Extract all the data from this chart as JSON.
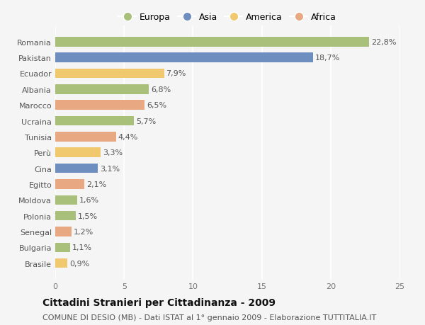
{
  "countries": [
    "Romania",
    "Pakistan",
    "Ecuador",
    "Albania",
    "Marocco",
    "Ucraina",
    "Tunisia",
    "Perù",
    "Cina",
    "Egitto",
    "Moldova",
    "Polonia",
    "Senegal",
    "Bulgaria",
    "Brasile"
  ],
  "values": [
    22.8,
    18.7,
    7.9,
    6.8,
    6.5,
    5.7,
    4.4,
    3.3,
    3.1,
    2.1,
    1.6,
    1.5,
    1.2,
    1.1,
    0.9
  ],
  "labels": [
    "22,8%",
    "18,7%",
    "7,9%",
    "6,8%",
    "6,5%",
    "5,7%",
    "4,4%",
    "3,3%",
    "3,1%",
    "2,1%",
    "1,6%",
    "1,5%",
    "1,2%",
    "1,1%",
    "0,9%"
  ],
  "colors": [
    "#a8c07a",
    "#6d8ebf",
    "#f0c96e",
    "#a8c07a",
    "#e8a882",
    "#a8c07a",
    "#e8a882",
    "#f0c96e",
    "#6d8ebf",
    "#e8a882",
    "#a8c07a",
    "#a8c07a",
    "#e8a882",
    "#a8c07a",
    "#f0c96e"
  ],
  "continent_colors": {
    "Europa": "#a8c07a",
    "Asia": "#6d8ebf",
    "America": "#f0c96e",
    "Africa": "#e8a882"
  },
  "title": "Cittadini Stranieri per Cittadinanza - 2009",
  "subtitle": "COMUNE DI DESIO (MB) - Dati ISTAT al 1° gennaio 2009 - Elaborazione TUTTITALIA.IT",
  "xlim": [
    0,
    25
  ],
  "xticks": [
    0,
    5,
    10,
    15,
    20,
    25
  ],
  "background_color": "#f5f5f5",
  "grid_color": "#ffffff",
  "title_fontsize": 10,
  "subtitle_fontsize": 8,
  "label_fontsize": 8,
  "tick_fontsize": 8,
  "legend_fontsize": 9,
  "bar_height": 0.6
}
